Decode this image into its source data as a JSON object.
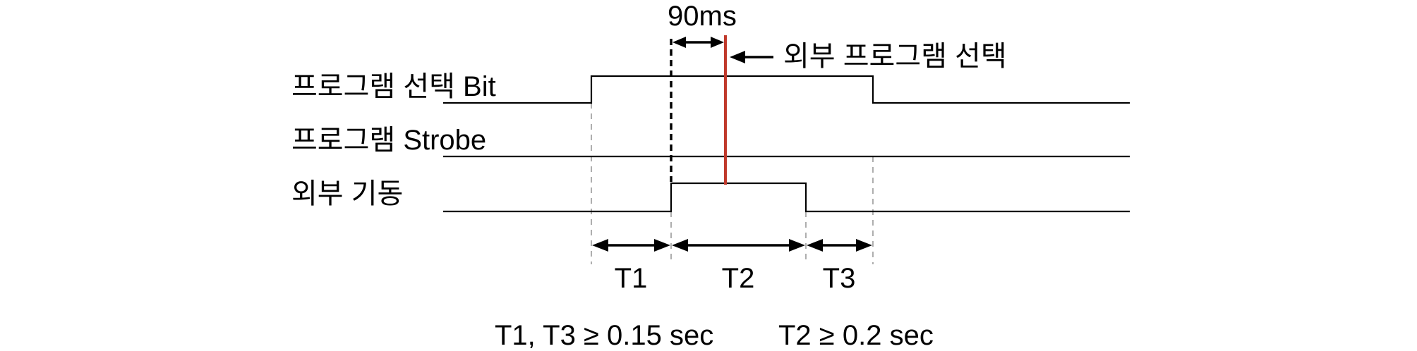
{
  "colors": {
    "background": "#ffffff",
    "signal_line": "#000000",
    "guide_line": "#9a9a9a",
    "external_select_line": "#c0392b"
  },
  "signals": [
    {
      "label": "프로그램 선택 Bit"
    },
    {
      "label": "프로그램 Strobe"
    },
    {
      "label": "외부 기동"
    }
  ],
  "annotations": {
    "delay": "90ms",
    "external_select": "외부 프로그램 선택"
  },
  "intervals": [
    {
      "label": "T1"
    },
    {
      "label": "T2"
    },
    {
      "label": "T3"
    }
  ],
  "conditions": [
    {
      "text": "T1, T3 ≥ 0.15 sec"
    },
    {
      "text": "T2 ≥ 0.2 sec"
    }
  ]
}
